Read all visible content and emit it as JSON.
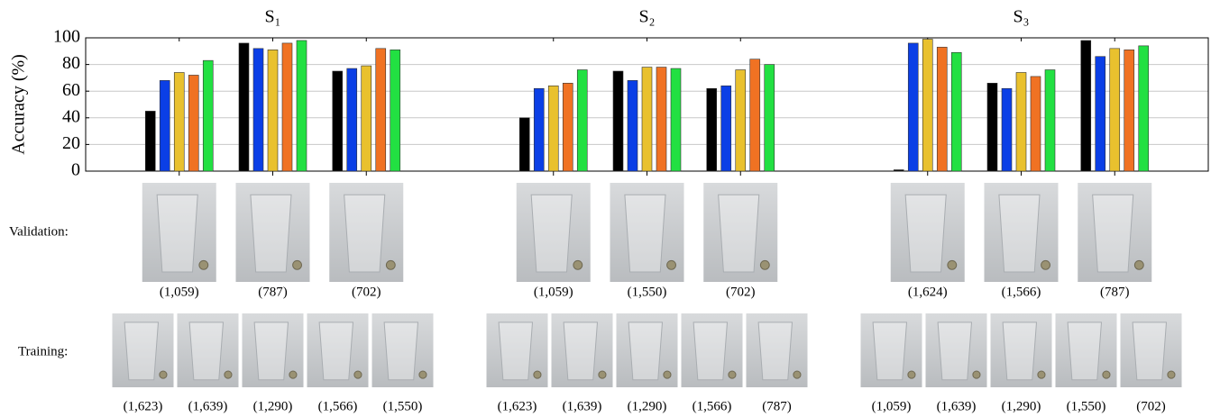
{
  "chart_data": {
    "type": "bar",
    "ylabel": "Accuracy (%)",
    "ylim": [
      0,
      100
    ],
    "yticks": [
      0,
      20,
      40,
      60,
      80,
      100
    ],
    "grid": true,
    "categories": [
      null,
      null,
      null,
      null,
      null,
      null,
      null,
      null,
      null
    ],
    "series": [
      {
        "color": "#000000",
        "values": [
          45,
          96,
          75,
          40,
          75,
          62,
          1,
          66,
          98
        ]
      },
      {
        "color": "#0b3fe6",
        "values": [
          68,
          92,
          77,
          62,
          68,
          64,
          96,
          62,
          86
        ]
      },
      {
        "color": "#e9c12e",
        "values": [
          74,
          91,
          79,
          64,
          78,
          76,
          99,
          74,
          92
        ]
      },
      {
        "color": "#f07223",
        "values": [
          72,
          96,
          92,
          66,
          78,
          84,
          93,
          71,
          91
        ]
      },
      {
        "color": "#22e042",
        "values": [
          83,
          98,
          91,
          76,
          77,
          80,
          89,
          76,
          94
        ]
      }
    ],
    "validation_label": "Validation:",
    "training_label": "Training:",
    "panels": [
      {
        "title": "S₁",
        "validation": [
          "(1,059)",
          "(787)",
          "(702)"
        ],
        "training": [
          "(1,623)",
          "(1,639)",
          "(1,290)",
          "(1,566)",
          "(1,550)"
        ]
      },
      {
        "title": "S₂",
        "validation": [
          "(1,059)",
          "(1,550)",
          "(702)"
        ],
        "training": [
          "(1,623)",
          "(1,639)",
          "(1,290)",
          "(1,566)",
          "(787)"
        ]
      },
      {
        "title": "S₃",
        "validation": [
          "(1,624)",
          "(1,566)",
          "(787)"
        ],
        "training": [
          "(1,059)",
          "(1,639)",
          "(1,290)",
          "(1,550)",
          "(702)"
        ]
      }
    ]
  }
}
